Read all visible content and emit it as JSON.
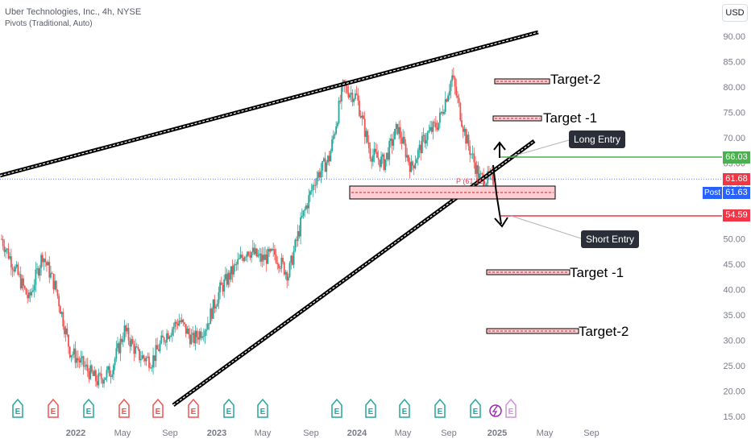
{
  "header": {
    "title": "Uber Technologies, Inc., 4h, NYSE",
    "subtitle": "Pivots (Traditional, Auto)"
  },
  "currency_button": "USD",
  "annotations": {
    "long_entry": "Long Entry",
    "short_entry": "Short Entry",
    "target_up_1": "Target -1",
    "target_up_2": "Target-2",
    "target_down_1": "Target -1",
    "target_down_2": "Target-2",
    "pivot_label": "P (61.11)"
  },
  "price_labels": {
    "long_entry_price": "66.03",
    "last_price": "61.68",
    "post_tag": "Post",
    "post_price": "61.63",
    "short_entry_price": "54.59"
  },
  "colors": {
    "up": "#26a69a",
    "down": "#ef5350",
    "long_line": "#4caf50",
    "short_line": "#f23645",
    "pivot_fill": "#ffcdd2",
    "axis_text": "#787b86"
  },
  "chart_data": {
    "type": "candlestick",
    "title": "Uber Technologies, Inc., 4h, NYSE",
    "ylim": [
      15,
      92
    ],
    "y_ticks": [
      15,
      20,
      25,
      30,
      35,
      40,
      45,
      50,
      55,
      60,
      65,
      70,
      75,
      80,
      85,
      90
    ],
    "y_tick_labels": [
      "15.00",
      "20.00",
      "25.00",
      "30.00",
      "35.00",
      "40.00",
      "45.00",
      "50.00",
      "55.00",
      "60.00",
      "65.00",
      "70.00",
      "75.00",
      "80.00",
      "85.00",
      "90.00"
    ],
    "x_tick_labels": [
      "2022",
      "May",
      "Sep",
      "2023",
      "May",
      "Sep",
      "2024",
      "May",
      "Sep",
      "2025",
      "May",
      "Sep"
    ],
    "price_path": [
      [
        "2022-01",
        50
      ],
      [
        "2022-02",
        44
      ],
      [
        "2022-03",
        38
      ],
      [
        "2022-04",
        47
      ],
      [
        "2022-05",
        40
      ],
      [
        "2022-06",
        28
      ],
      [
        "2022-07",
        25
      ],
      [
        "2022-08",
        22
      ],
      [
        "2022-09",
        24
      ],
      [
        "2022-10",
        32
      ],
      [
        "2022-11",
        27
      ],
      [
        "2022-12",
        26
      ],
      [
        "2023-01",
        31
      ],
      [
        "2023-02",
        34
      ],
      [
        "2023-03",
        30
      ],
      [
        "2023-04",
        33
      ],
      [
        "2023-05",
        40
      ],
      [
        "2023-06",
        44
      ],
      [
        "2023-07",
        48
      ],
      [
        "2023-08",
        46
      ],
      [
        "2023-09",
        47
      ],
      [
        "2023-10",
        43
      ],
      [
        "2023-11",
        54
      ],
      [
        "2023-12",
        62
      ],
      [
        "2024-01",
        66
      ],
      [
        "2024-02",
        80
      ],
      [
        "2024-03",
        78
      ],
      [
        "2024-04",
        67
      ],
      [
        "2024-05",
        65
      ],
      [
        "2024-06",
        72
      ],
      [
        "2024-07",
        64
      ],
      [
        "2024-08",
        70
      ],
      [
        "2024-09",
        73
      ],
      [
        "2024-10",
        82
      ],
      [
        "2024-11",
        70
      ],
      [
        "2024-12",
        62
      ],
      [
        "2025-01",
        61.68
      ]
    ],
    "levels": {
      "long_entry": 66.03,
      "last": 61.68,
      "post": 61.63,
      "short_entry": 54.59,
      "pivot": 61.11
    },
    "legend": "top-left",
    "grid": false
  }
}
